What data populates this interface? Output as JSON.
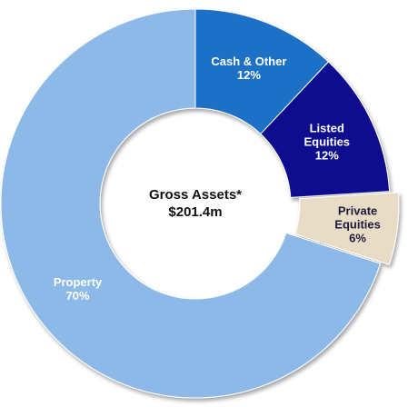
{
  "chart_data": {
    "type": "donut",
    "center_text": [
      "Gross Assets*",
      "$201.4m"
    ],
    "categories": [
      "Cash & Other",
      "Listed Equities",
      "Private Equities",
      "Property"
    ],
    "values": [
      12,
      12,
      6,
      70
    ],
    "value_labels": [
      "12%",
      "12%",
      "6%",
      "70%"
    ],
    "colors": [
      "#1f6fc6",
      "#0b0b8e",
      "#e9dcc6",
      "#8db9e8"
    ],
    "label_colors": [
      "#ffffff",
      "#ffffff",
      "#1a1a3a",
      "#ffffff"
    ],
    "exploded": [
      false,
      false,
      true,
      false
    ]
  }
}
